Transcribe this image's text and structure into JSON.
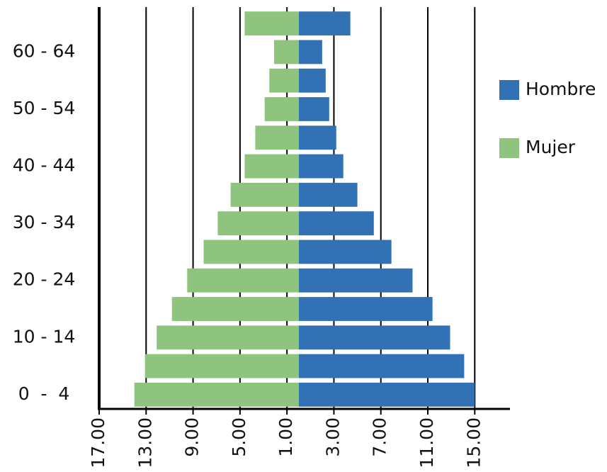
{
  "chart_data": {
    "type": "pyramid",
    "categories": [
      "0  -  4",
      null,
      "10 - 14",
      null,
      "20 - 24",
      null,
      "30 - 34",
      null,
      "40 - 44",
      null,
      "50 - 54",
      null,
      "60 - 64",
      null
    ],
    "series": [
      {
        "name": "Hombre",
        "color": "#3371b5",
        "values": [
          15.0,
          14.1,
          12.9,
          11.4,
          9.7,
          7.9,
          6.4,
          5.0,
          3.8,
          3.2,
          2.6,
          2.3,
          2.0,
          4.4
        ]
      },
      {
        "name": "Mujer",
        "color": "#8fc47e",
        "values": [
          -14.0,
          -13.1,
          -12.1,
          -10.8,
          -9.5,
          -8.1,
          -6.9,
          -5.8,
          -4.6,
          -3.7,
          -2.9,
          -2.5,
          -2.1,
          -4.6
        ]
      }
    ],
    "xlim": [
      -17,
      18
    ],
    "xticks": [
      {
        "value": -17,
        "label": "17.00"
      },
      {
        "value": -13,
        "label": "13.00"
      },
      {
        "value": -9,
        "label": "9.00"
      },
      {
        "value": -5,
        "label": "5.00"
      },
      {
        "value": -1,
        "label": "1.00"
      },
      {
        "value": 3,
        "label": "3.00"
      },
      {
        "value": 7,
        "label": "7.00"
      },
      {
        "value": 11,
        "label": "11.00"
      },
      {
        "value": 15,
        "label": "15.00"
      }
    ],
    "grid": true
  }
}
